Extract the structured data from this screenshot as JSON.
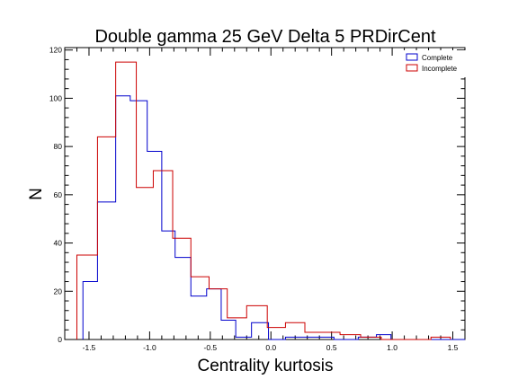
{
  "chart_data": {
    "type": "histogram",
    "title": "Double gamma 25 GeV Delta 5 PRDirCent",
    "xlabel": "Centrality kurtosis",
    "ylabel": "N",
    "xlim": [
      -1.7,
      1.6
    ],
    "ylim": [
      0,
      121
    ],
    "x_ticks": [
      -1.5,
      -1.0,
      -0.5,
      0.0,
      0.5,
      1.0,
      1.5
    ],
    "x_tick_labels": [
      "-1.5",
      "-1.0",
      "-0.5",
      "0.0",
      "0.5",
      "1.0",
      "1.5"
    ],
    "y_ticks": [
      0,
      20,
      40,
      60,
      80,
      100,
      120
    ],
    "y_tick_labels": [
      "0",
      "20",
      "40",
      "60",
      "80",
      "100",
      "120"
    ],
    "legend_position": "top-right",
    "series": [
      {
        "name": "Complete",
        "color": "#0000cc",
        "bins": [
          {
            "x0": -1.55,
            "x1": -1.43,
            "y": 24
          },
          {
            "x0": -1.43,
            "x1": -1.28,
            "y": 57
          },
          {
            "x0": -1.28,
            "x1": -1.16,
            "y": 101
          },
          {
            "x0": -1.16,
            "x1": -1.02,
            "y": 99
          },
          {
            "x0": -1.02,
            "x1": -0.9,
            "y": 78
          },
          {
            "x0": -0.9,
            "x1": -0.79,
            "y": 45
          },
          {
            "x0": -0.79,
            "x1": -0.66,
            "y": 34
          },
          {
            "x0": -0.66,
            "x1": -0.53,
            "y": 18
          },
          {
            "x0": -0.53,
            "x1": -0.41,
            "y": 21
          },
          {
            "x0": -0.41,
            "x1": -0.29,
            "y": 8
          },
          {
            "x0": -0.29,
            "x1": -0.16,
            "y": 1
          },
          {
            "x0": -0.16,
            "x1": -0.02,
            "y": 7
          },
          {
            "x0": -0.02,
            "x1": 0.12,
            "y": 0
          },
          {
            "x0": 0.12,
            "x1": 0.52,
            "y": 1
          },
          {
            "x0": 0.52,
            "x1": 0.72,
            "y": 0
          },
          {
            "x0": 0.72,
            "x1": 0.87,
            "y": 1
          },
          {
            "x0": 0.87,
            "x1": 0.99,
            "y": 2
          },
          {
            "x0": 0.99,
            "x1": 1.6,
            "y": 0
          }
        ]
      },
      {
        "name": "Incomplete",
        "color": "#cc0000",
        "bins": [
          {
            "x0": -1.6,
            "x1": -1.43,
            "y": 35
          },
          {
            "x0": -1.43,
            "x1": -1.28,
            "y": 84
          },
          {
            "x0": -1.28,
            "x1": -1.11,
            "y": 115
          },
          {
            "x0": -1.11,
            "x1": -0.97,
            "y": 63
          },
          {
            "x0": -0.97,
            "x1": -0.81,
            "y": 70
          },
          {
            "x0": -0.81,
            "x1": -0.66,
            "y": 42
          },
          {
            "x0": -0.66,
            "x1": -0.51,
            "y": 26
          },
          {
            "x0": -0.51,
            "x1": -0.36,
            "y": 21
          },
          {
            "x0": -0.36,
            "x1": -0.2,
            "y": 9
          },
          {
            "x0": -0.2,
            "x1": -0.03,
            "y": 14
          },
          {
            "x0": -0.03,
            "x1": 0.12,
            "y": 5
          },
          {
            "x0": 0.12,
            "x1": 0.28,
            "y": 7
          },
          {
            "x0": 0.28,
            "x1": 0.57,
            "y": 3
          },
          {
            "x0": 0.57,
            "x1": 0.74,
            "y": 2
          },
          {
            "x0": 0.74,
            "x1": 0.91,
            "y": 1
          },
          {
            "x0": 0.91,
            "x1": 1.32,
            "y": 0
          },
          {
            "x0": 1.32,
            "x1": 1.48,
            "y": 1
          }
        ]
      }
    ]
  }
}
